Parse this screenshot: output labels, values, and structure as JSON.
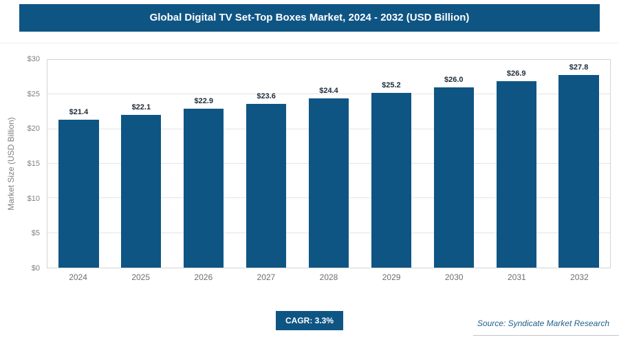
{
  "header": {
    "title": "Global Digital TV Set-Top Boxes Market, 2024 - 2032 (USD Billion)"
  },
  "chart_data": {
    "type": "bar",
    "title": "Global Digital TV Set-Top Boxes Market, 2024 - 2032 (USD Billion)",
    "categories": [
      "2024",
      "2025",
      "2026",
      "2027",
      "2028",
      "2029",
      "2030",
      "2031",
      "2032"
    ],
    "values": [
      21.4,
      22.1,
      22.9,
      23.6,
      24.4,
      25.2,
      26.0,
      26.9,
      27.8
    ],
    "value_labels": [
      "$21.4",
      "$22.1",
      "$22.9",
      "$23.6",
      "$24.4",
      "$25.2",
      "$26.0",
      "$26.9",
      "$27.8"
    ],
    "xlabel": "",
    "ylabel": "Market Size (USD Billion)",
    "ylim": [
      0,
      30
    ],
    "yticks": [
      0,
      5,
      10,
      15,
      20,
      25,
      30
    ],
    "ytick_labels": [
      "$0",
      "$5",
      "$10",
      "$15",
      "$20",
      "$25",
      "$30"
    ],
    "grid": true,
    "legend": false
  },
  "footer": {
    "cagr_label": "CAGR: 3.3%",
    "source": "Source: Syndicate Market Research"
  },
  "colors": {
    "header_bg": "#0e5584",
    "bar": "#0e5584",
    "badge_bg": "#0e5584",
    "value_label": "#1c2b39",
    "axis_text": "#808080",
    "grid_line": "#e4e4e4",
    "plot_border": "#d3d3d3",
    "source_text": "#1f5e8a"
  }
}
